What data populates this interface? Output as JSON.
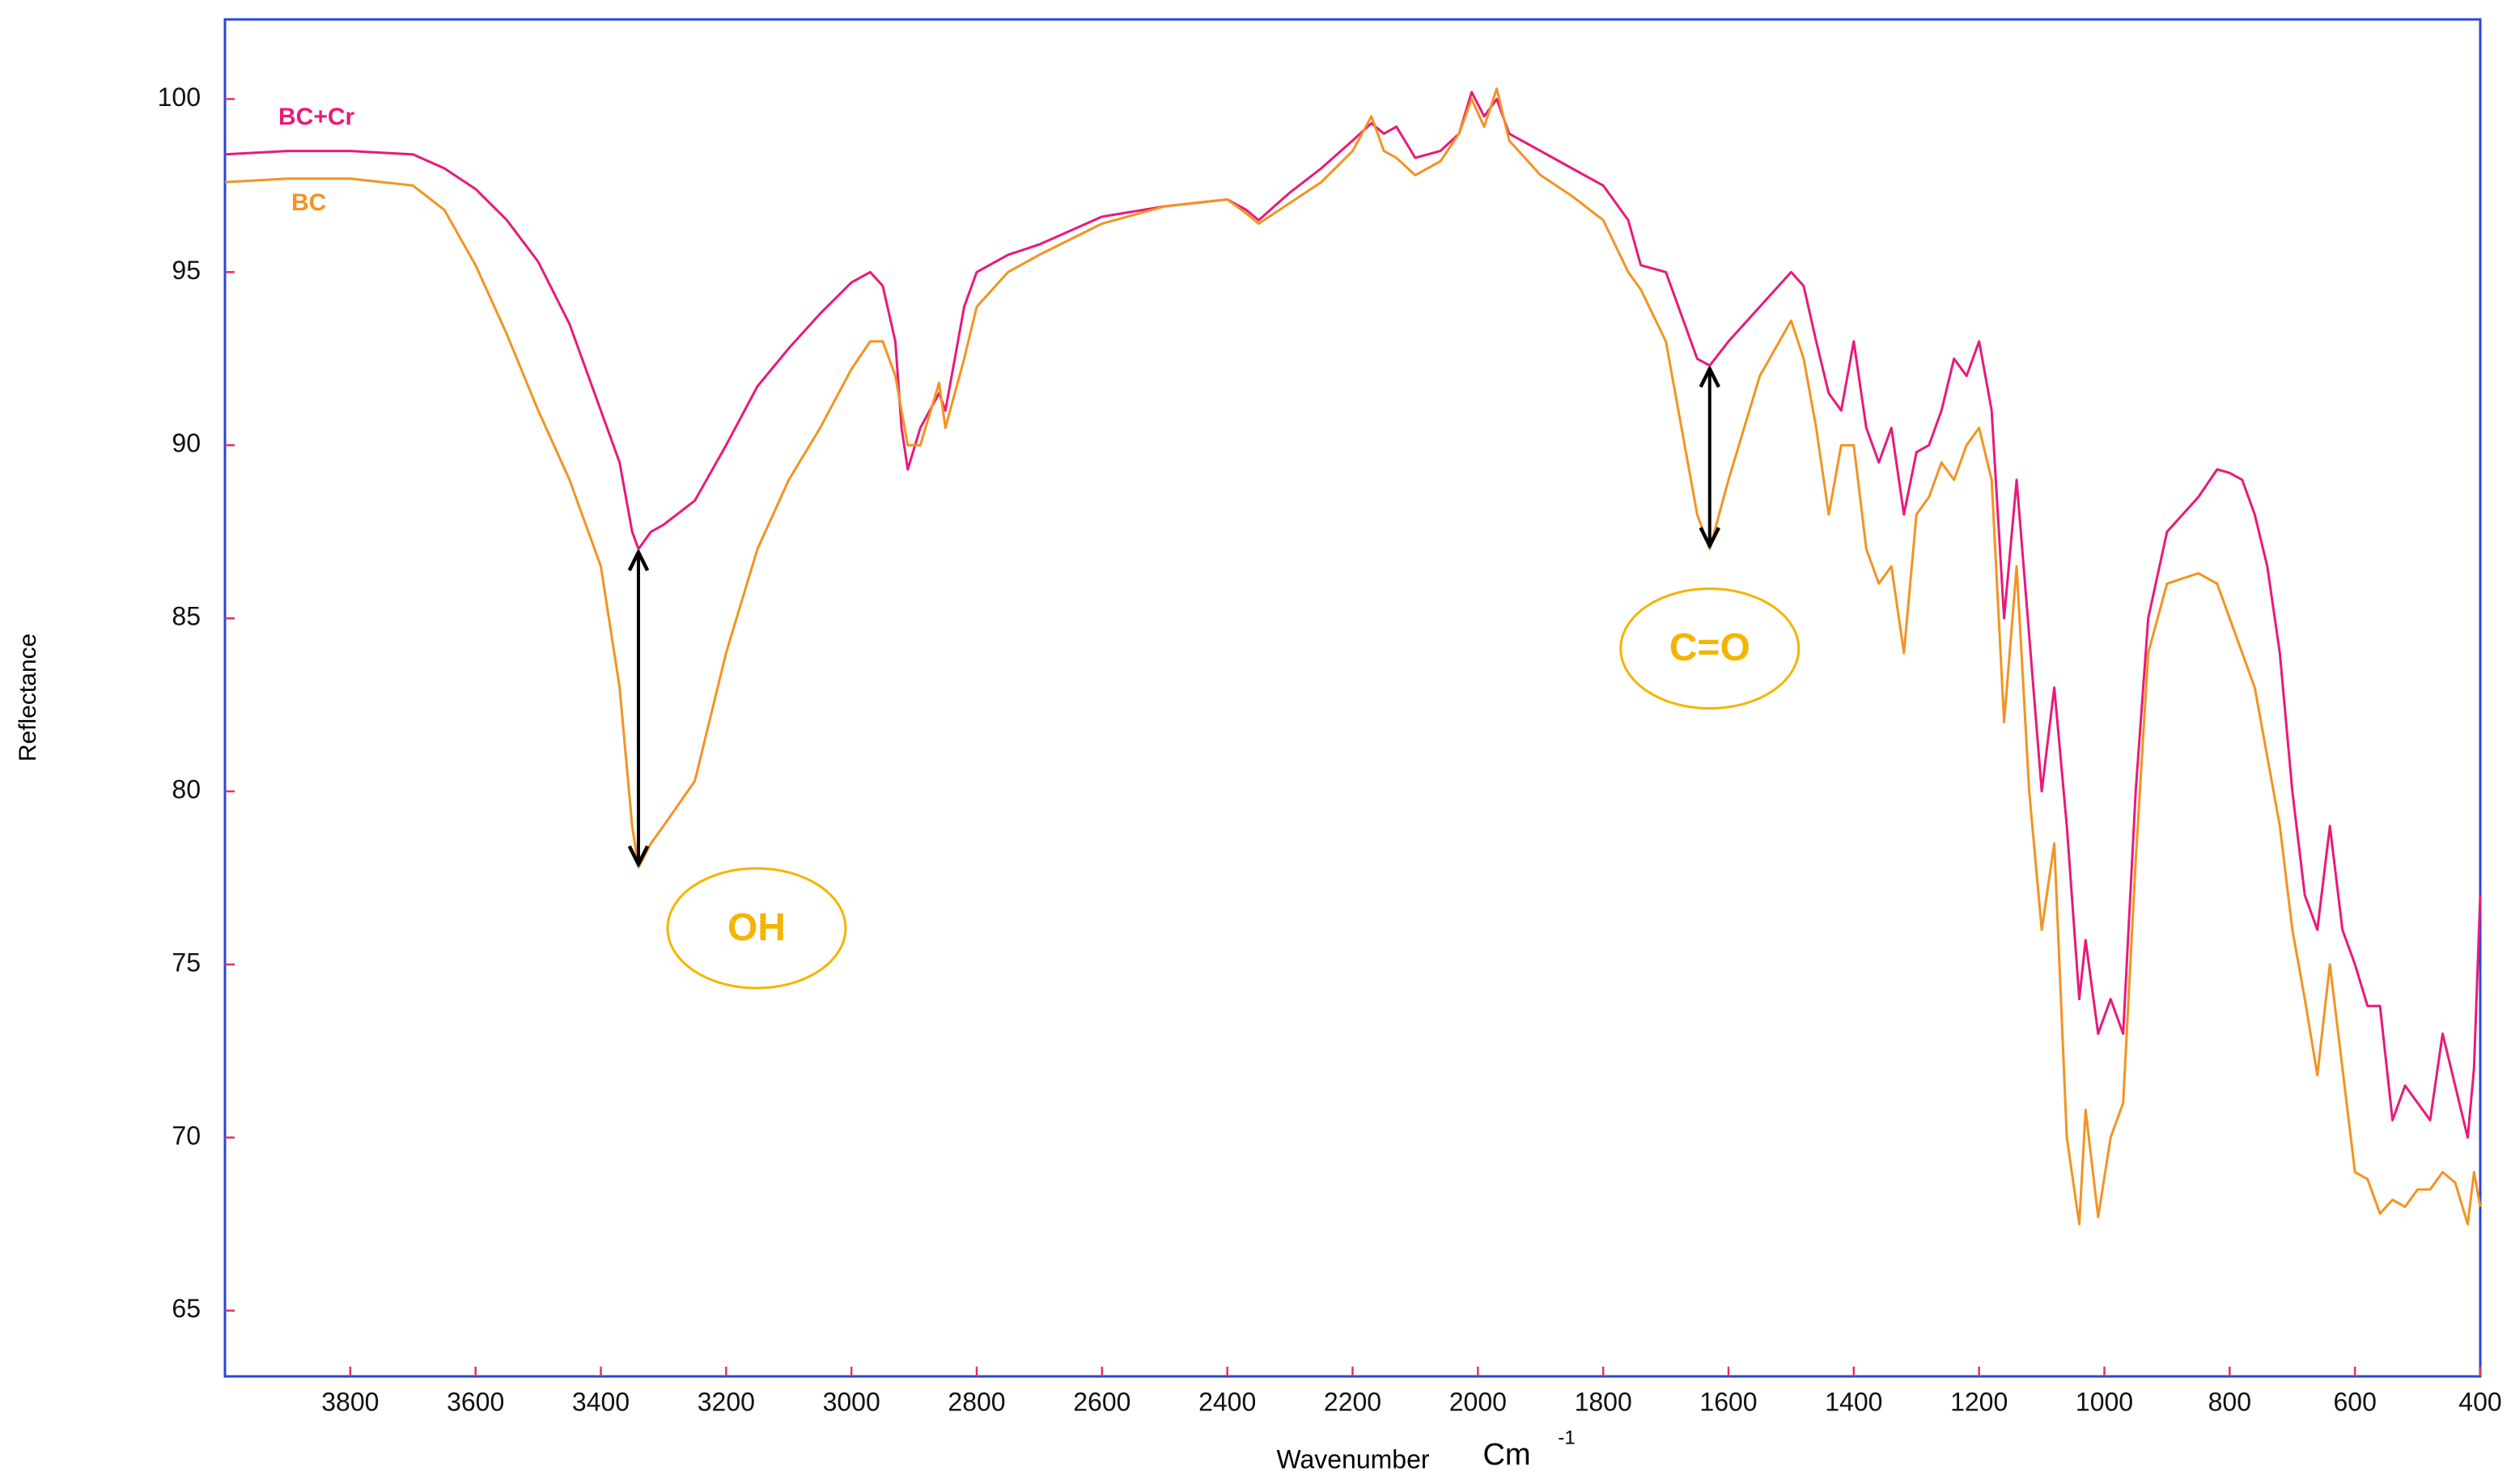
{
  "chart_data": {
    "type": "line",
    "y_label": "Reflectance",
    "x_label": "Wavenumber",
    "x_unit": "Cm",
    "x_unit_exponent": "-1",
    "xlim": [
      4000,
      400
    ],
    "ylim": [
      63.1,
      102.3
    ],
    "xticks": [
      3800,
      3600,
      3400,
      3200,
      3000,
      2800,
      2600,
      2400,
      2200,
      2000,
      1800,
      1600,
      1400,
      1200,
      1000,
      800,
      600,
      400
    ],
    "yticks": [
      65,
      70,
      75,
      80,
      85,
      90,
      95,
      100
    ],
    "x": [
      4000,
      3900,
      3800,
      3700,
      3650,
      3600,
      3550,
      3500,
      3450,
      3400,
      3370,
      3350,
      3340,
      3320,
      3300,
      3250,
      3200,
      3150,
      3100,
      3050,
      3000,
      2970,
      2950,
      2930,
      2920,
      2910,
      2890,
      2860,
      2850,
      2820,
      2800,
      2750,
      2700,
      2600,
      2500,
      2400,
      2370,
      2350,
      2300,
      2250,
      2200,
      2170,
      2150,
      2130,
      2100,
      2060,
      2030,
      2010,
      1990,
      1970,
      1950,
      1900,
      1850,
      1800,
      1760,
      1740,
      1700,
      1680,
      1650,
      1630,
      1600,
      1550,
      1500,
      1480,
      1460,
      1440,
      1420,
      1400,
      1380,
      1360,
      1340,
      1320,
      1300,
      1280,
      1260,
      1240,
      1220,
      1200,
      1180,
      1160,
      1140,
      1120,
      1100,
      1080,
      1060,
      1040,
      1030,
      1010,
      990,
      970,
      950,
      930,
      900,
      850,
      820,
      800,
      780,
      760,
      740,
      720,
      700,
      680,
      660,
      640,
      620,
      600,
      580,
      560,
      540,
      520,
      500,
      480,
      460,
      440,
      420,
      410,
      400
    ],
    "series": [
      {
        "name": "BC+Cr",
        "color": "#e8197c",
        "values": [
          98.4,
          98.5,
          98.5,
          98.4,
          98.0,
          97.4,
          96.5,
          95.3,
          93.5,
          91.0,
          89.5,
          87.5,
          87.0,
          87.5,
          87.7,
          88.4,
          90.0,
          91.7,
          92.8,
          93.8,
          94.7,
          95.0,
          94.6,
          93.0,
          90.5,
          89.3,
          90.5,
          91.5,
          91.0,
          94.0,
          95.0,
          95.5,
          95.8,
          96.6,
          96.9,
          97.1,
          96.8,
          96.5,
          97.3,
          98.0,
          98.8,
          99.3,
          99.0,
          99.2,
          98.3,
          98.5,
          99.0,
          100.2,
          99.5,
          100.0,
          99.0,
          98.5,
          98.0,
          97.5,
          96.5,
          95.2,
          95.0,
          94.0,
          92.5,
          92.3,
          93.0,
          94.0,
          95.0,
          94.6,
          93.0,
          91.5,
          91.0,
          93.0,
          90.5,
          89.5,
          90.5,
          88.0,
          89.8,
          90.0,
          91.0,
          92.5,
          92.0,
          93.0,
          91.0,
          85.0,
          89.0,
          84.5,
          80.0,
          83.0,
          79.0,
          74.0,
          75.7,
          73.0,
          74.0,
          73.0,
          80.0,
          85.0,
          87.5,
          88.5,
          89.3,
          89.2,
          89.0,
          88.0,
          86.5,
          84.0,
          80.0,
          77.0,
          76.0,
          79.0,
          76.0,
          75.0,
          73.8,
          73.8,
          70.5,
          71.5,
          71.0,
          70.5,
          73.0,
          71.5,
          70.0,
          72.0,
          77.0
        ]
      },
      {
        "name": "BC",
        "color": "#f39322",
        "values": [
          97.6,
          97.7,
          97.7,
          97.5,
          96.8,
          95.2,
          93.2,
          91.0,
          89.0,
          86.5,
          83.0,
          79.0,
          77.8,
          78.5,
          79.0,
          80.3,
          84.0,
          87.0,
          89.0,
          90.5,
          92.2,
          93.0,
          93.0,
          92.0,
          91.0,
          90.0,
          90.0,
          91.8,
          90.5,
          92.5,
          94.0,
          95.0,
          95.5,
          96.4,
          96.9,
          97.1,
          96.7,
          96.4,
          97.0,
          97.6,
          98.5,
          99.5,
          98.5,
          98.3,
          97.8,
          98.2,
          99.0,
          100.0,
          99.2,
          100.3,
          98.8,
          97.8,
          97.2,
          96.5,
          95.0,
          94.5,
          93.0,
          91.0,
          88.0,
          87.0,
          89.0,
          92.0,
          93.6,
          92.5,
          90.5,
          88.0,
          90.0,
          90.0,
          87.0,
          86.0,
          86.5,
          84.0,
          88.0,
          88.5,
          89.5,
          89.0,
          90.0,
          90.5,
          89.0,
          82.0,
          86.5,
          80.0,
          76.0,
          78.5,
          70.0,
          67.5,
          70.8,
          67.7,
          70.0,
          71.0,
          78.0,
          84.0,
          86.0,
          86.3,
          86.0,
          85.0,
          84.0,
          83.0,
          81.0,
          79.0,
          76.0,
          74.0,
          71.8,
          75.0,
          72.0,
          69.0,
          68.8,
          67.8,
          68.2,
          68.0,
          68.5,
          68.5,
          69.0,
          68.7,
          67.5,
          69.0,
          68.0
        ]
      }
    ],
    "annotations": [
      {
        "text": "OH",
        "x": 3340,
        "color": "#f5b400"
      },
      {
        "text": "C=O",
        "x": 1630,
        "color": "#f5b400"
      }
    ]
  }
}
